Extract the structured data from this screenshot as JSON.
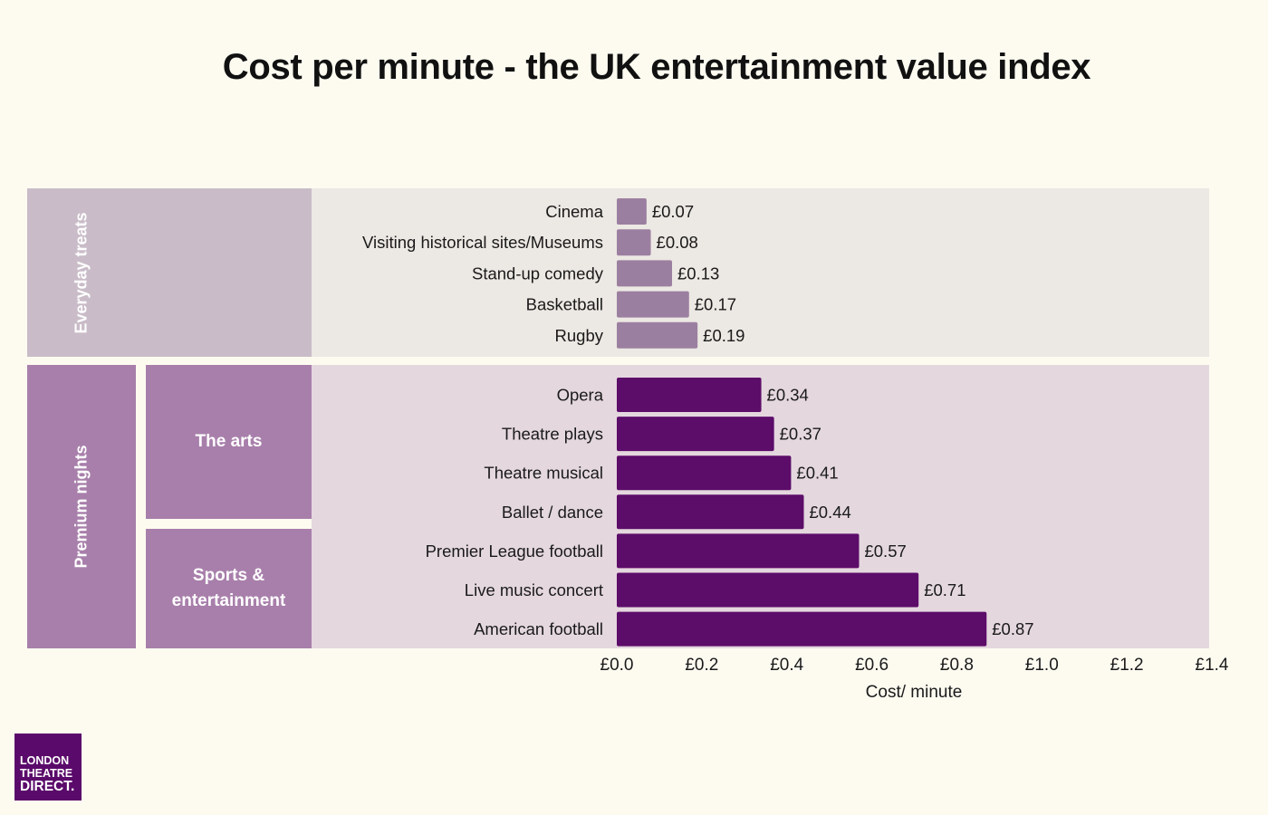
{
  "title": "Cost per minute - the UK entertainment value index",
  "colors": {
    "background": "#fdfbf0",
    "everyday_panel": "#ece8e3",
    "everyday_group": "#c9bcc8",
    "everyday_bar": "#9b7fa0",
    "premium_panel": "#e4d7de",
    "premium_group": "#a87fab",
    "premium_bar": "#5c0c69",
    "logo": "#5a0a6a"
  },
  "groups": {
    "everyday": "Everyday treats",
    "premium": "Premium nights",
    "arts": "The arts",
    "sports_line1": "Sports &",
    "sports_line2": "entertainment"
  },
  "logo": {
    "line1": "LONDON",
    "line2": "THEATRE",
    "line3": "DIRECT."
  },
  "chart_data": {
    "type": "bar",
    "orientation": "horizontal",
    "title": "Cost per minute - the UK entertainment value index",
    "xlabel": "Cost/ minute",
    "ylabel": "",
    "xlim": [
      0,
      1.4
    ],
    "xticks": [
      0.0,
      0.2,
      0.4,
      0.6,
      0.8,
      1.0,
      1.2,
      1.4
    ],
    "xtick_labels": [
      "£0.0",
      "£0.2",
      "£0.4",
      "£0.6",
      "£0.8",
      "£1.0",
      "£1.2",
      "£1.4"
    ],
    "grid": false,
    "legend": "none",
    "series": [
      {
        "name": "Everyday treats",
        "categories": [
          "Cinema",
          "Visiting historical sites/Museums",
          "Stand-up comedy",
          "Basketball",
          "Rugby"
        ],
        "values": [
          0.07,
          0.08,
          0.13,
          0.17,
          0.19
        ],
        "labels": [
          "£0.07",
          "£0.08",
          "£0.13",
          "£0.17",
          "£0.19"
        ]
      },
      {
        "name": "Premium nights",
        "categories": [
          "Opera",
          "Theatre plays",
          "Theatre musical",
          "Ballet / dance",
          "Premier League football",
          "Live music concert",
          "American football"
        ],
        "values": [
          0.34,
          0.37,
          0.41,
          0.44,
          0.57,
          0.71,
          0.87
        ],
        "labels": [
          "£0.34",
          "£0.37",
          "£0.41",
          "£0.44",
          "£0.57",
          "£0.71",
          "£0.87"
        ],
        "subgroups": [
          {
            "name": "The arts",
            "categories": [
              "Opera",
              "Theatre plays",
              "Theatre musical",
              "Ballet / dance"
            ]
          },
          {
            "name": "Sports & entertainment",
            "categories": [
              "Premier League football",
              "Live music concert",
              "American football"
            ]
          }
        ]
      }
    ]
  }
}
